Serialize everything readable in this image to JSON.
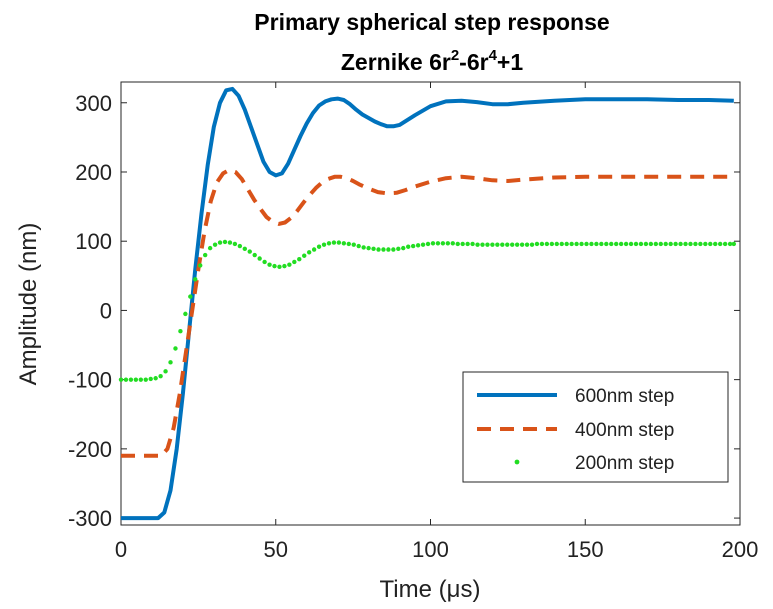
{
  "chart_data": {
    "type": "line",
    "title": "Primary spherical step response",
    "subtitle": {
      "prefix": "Zernike 6r",
      "sup1": "2",
      "mid": "-6r",
      "sup2": "4",
      "suffix": "+1"
    },
    "xlabel": "Time (μs)",
    "ylabel": "Amplitude (nm)",
    "xlim": [
      0,
      200
    ],
    "ylim": [
      -310,
      330
    ],
    "xticks": [
      "0",
      "50",
      "100",
      "150",
      "200"
    ],
    "yticks": [
      "300",
      "200",
      "100",
      "0",
      "-100",
      "-200",
      "-300"
    ],
    "grid": false,
    "legend_position": "bottom-right",
    "series": [
      {
        "name": "600nm step",
        "style": "solid",
        "color": "#0072BD",
        "x": [
          0,
          12,
          14,
          16,
          18,
          20,
          22,
          24,
          26,
          28,
          30,
          32,
          34,
          36,
          38,
          40,
          42,
          44,
          46,
          48,
          50,
          52,
          54,
          56,
          58,
          60,
          62,
          64,
          66,
          68,
          70,
          72,
          74,
          76,
          78,
          80,
          82,
          84,
          86,
          88,
          90,
          95,
          100,
          105,
          110,
          115,
          120,
          125,
          130,
          140,
          150,
          160,
          170,
          180,
          190,
          198
        ],
        "y": [
          -300,
          -300,
          -292,
          -260,
          -200,
          -120,
          -30,
          60,
          140,
          210,
          265,
          300,
          318,
          320,
          310,
          290,
          265,
          240,
          215,
          200,
          195,
          198,
          212,
          232,
          252,
          270,
          285,
          296,
          302,
          305,
          306,
          304,
          298,
          290,
          283,
          278,
          273,
          269,
          266,
          266,
          268,
          282,
          295,
          302,
          303,
          301,
          298,
          298,
          300,
          303,
          305,
          305,
          305,
          304,
          304,
          303
        ]
      },
      {
        "name": "400nm step",
        "style": "dashed",
        "color": "#D95319",
        "x": [
          0,
          13,
          15,
          17,
          19,
          21,
          23,
          25,
          27,
          29,
          31,
          33,
          35,
          37,
          39,
          41,
          43,
          45,
          47,
          49,
          51,
          53,
          55,
          57,
          59,
          61,
          63,
          65,
          67,
          69,
          71,
          73,
          75,
          77,
          80,
          83,
          86,
          89,
          92,
          95,
          100,
          105,
          110,
          115,
          120,
          125,
          130,
          140,
          150,
          160,
          170,
          180,
          190,
          198
        ],
        "y": [
          -210,
          -210,
          -200,
          -170,
          -120,
          -60,
          0,
          60,
          115,
          158,
          185,
          198,
          203,
          200,
          190,
          175,
          160,
          147,
          135,
          128,
          125,
          127,
          134,
          144,
          156,
          167,
          177,
          185,
          190,
          193,
          193,
          191,
          187,
          182,
          176,
          171,
          169,
          170,
          174,
          179,
          186,
          191,
          193,
          191,
          188,
          187,
          189,
          192,
          193,
          193,
          193,
          193,
          193,
          193
        ]
      },
      {
        "name": "200nm step",
        "style": "dotted",
        "color": "#22DD22",
        "x": [
          0,
          1.6,
          3.2,
          4.8,
          6.4,
          8.0,
          9.6,
          11.2,
          12.8,
          14.4,
          16.0,
          17.6,
          19.2,
          20.8,
          22.4,
          24.0,
          25.6,
          27.2,
          28.8,
          30.4,
          32.0,
          33.6,
          35.2,
          36.8,
          38.4,
          40.0,
          41.6,
          43.2,
          44.8,
          46.4,
          48.0,
          49.6,
          51.2,
          52.8,
          54.4,
          56.0,
          57.6,
          59.2,
          60.8,
          62.4,
          64.0,
          65.6,
          67.2,
          68.8,
          70.4,
          72.0,
          73.6,
          75.2,
          76.8,
          78.4,
          80.0,
          81.6,
          83.2,
          84.8,
          86.4,
          88.0,
          89.6,
          91.2,
          92.8,
          94.4,
          96.0,
          97.6,
          99.2,
          100.8,
          102.4,
          104.0,
          105.6,
          107.2,
          108.8,
          110.4,
          112.0,
          113.6,
          115.2,
          116.8,
          118.4,
          120.0,
          121.6,
          123.2,
          124.8,
          126.4,
          128.0,
          129.6,
          131.2,
          132.8,
          134.4,
          136.0,
          137.6,
          139.2,
          140.8,
          142.4,
          144.0,
          145.6,
          147.2,
          148.8,
          150.4,
          152.0,
          153.6,
          155.2,
          156.8,
          158.4,
          160.0,
          161.6,
          163.2,
          164.8,
          166.4,
          168.0,
          169.6,
          171.2,
          172.8,
          174.4,
          176.0,
          177.6,
          179.2,
          180.8,
          182.4,
          184.0,
          185.6,
          187.2,
          188.8,
          190.4,
          192.0,
          193.6,
          195.2,
          196.8,
          198.0
        ],
        "y": [
          -100,
          -100,
          -100,
          -100,
          -100,
          -100,
          -99,
          -98,
          -95,
          -88,
          -75,
          -55,
          -30,
          -5,
          20,
          45,
          65,
          80,
          90,
          95,
          98,
          99,
          98,
          96,
          93,
          89,
          85,
          80,
          75,
          70,
          66,
          64,
          63,
          64,
          66,
          70,
          74,
          79,
          84,
          88,
          92,
          95,
          97,
          98,
          98,
          97,
          96,
          95,
          93,
          91,
          90,
          89,
          88,
          88,
          88,
          88,
          89,
          90,
          92,
          93,
          94,
          95,
          96,
          97,
          97,
          97,
          97,
          97,
          96,
          96,
          96,
          96,
          95,
          95,
          95,
          95,
          95,
          95,
          95,
          95,
          95,
          95,
          95,
          95,
          96,
          96,
          96,
          96,
          96,
          96,
          96,
          96,
          96,
          96,
          96,
          96,
          96,
          96,
          96,
          96,
          96,
          96,
          96,
          96,
          96,
          96,
          96,
          96,
          96,
          96,
          96,
          96,
          96,
          96,
          96,
          96,
          96,
          96,
          96,
          96,
          96,
          96,
          96,
          96,
          96
        ]
      }
    ]
  }
}
